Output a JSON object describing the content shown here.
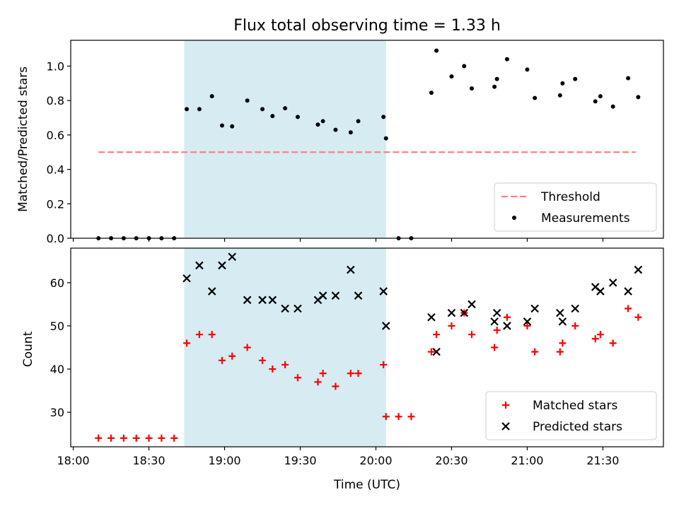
{
  "figure": {
    "title": "Flux total observing time = 1.33 h",
    "xlabel": "Time (UTC)",
    "shaded_interval": [
      "18:44",
      "20:04"
    ],
    "shade_color": "#add8e6"
  },
  "colors": {
    "threshold": "#ff8080",
    "measurement": "#000000",
    "matched": "#ff0000",
    "predicted": "#000000"
  },
  "chart_data": [
    {
      "type": "scatter",
      "ylabel": "Matched/Predicted stars",
      "xlim": [
        "17:59",
        "21:54"
      ],
      "ylim": [
        0,
        1.15
      ],
      "yticks": [
        0.0,
        0.2,
        0.4,
        0.6,
        0.8,
        1.0
      ],
      "ytick_labels": [
        "0.0",
        "0.2",
        "0.4",
        "0.6",
        "0.8",
        "1.0"
      ],
      "xticks": [
        "18:00",
        "18:30",
        "19:00",
        "19:30",
        "20:00",
        "20:30",
        "21:00",
        "21:30"
      ],
      "legend": {
        "placement": "lower right",
        "entries": [
          "Threshold",
          "Measurements"
        ]
      },
      "series": [
        {
          "name": "Threshold",
          "kind": "line",
          "style": "dashed",
          "x": [
            "18:10",
            "21:43"
          ],
          "y": [
            0.5,
            0.5
          ]
        },
        {
          "name": "Measurements",
          "kind": "points",
          "x": [
            "18:10",
            "18:15",
            "18:20",
            "18:25",
            "18:30",
            "18:35",
            "18:40",
            "18:45",
            "18:50",
            "18:55",
            "18:59",
            "19:03",
            "19:09",
            "19:15",
            "19:19",
            "19:24",
            "19:29",
            "19:37",
            "19:39",
            "19:44",
            "19:50",
            "19:53",
            "20:03",
            "20:04",
            "20:09",
            "20:14",
            "20:22",
            "20:24",
            "20:30",
            "20:35",
            "20:38",
            "20:47",
            "20:48",
            "20:52",
            "21:00",
            "21:03",
            "21:13",
            "21:14",
            "21:19",
            "21:27",
            "21:29",
            "21:34",
            "21:40",
            "21:44"
          ],
          "y": [
            0,
            0,
            0,
            0,
            0,
            0,
            0,
            0.75,
            0.75,
            0.825,
            0.655,
            0.65,
            0.8,
            0.75,
            0.71,
            0.755,
            0.705,
            0.66,
            0.68,
            0.63,
            0.615,
            0.68,
            0.705,
            0.58,
            0,
            0,
            0.845,
            1.09,
            0.94,
            1.0,
            0.87,
            0.88,
            0.925,
            1.04,
            0.98,
            0.815,
            0.83,
            0.9,
            0.925,
            0.795,
            0.825,
            0.765,
            0.93,
            0.82
          ]
        }
      ]
    },
    {
      "type": "scatter",
      "ylabel": "Count",
      "xlim": [
        "17:59",
        "21:54"
      ],
      "ylim": [
        22,
        68
      ],
      "yticks": [
        30,
        40,
        50,
        60
      ],
      "ytick_labels": [
        "30",
        "40",
        "50",
        "60"
      ],
      "xticks": [
        "18:00",
        "18:30",
        "19:00",
        "19:30",
        "20:00",
        "20:30",
        "21:00",
        "21:30"
      ],
      "xtick_labels": [
        "18:00",
        "18:30",
        "19:00",
        "19:30",
        "20:00",
        "20:30",
        "21:00",
        "21:30"
      ],
      "legend": {
        "placement": "lower right",
        "entries": [
          "Matched stars",
          "Predicted stars"
        ]
      },
      "series": [
        {
          "name": "Matched stars",
          "marker": "plus",
          "x": [
            "18:10",
            "18:15",
            "18:20",
            "18:25",
            "18:30",
            "18:35",
            "18:40",
            "18:45",
            "18:50",
            "18:55",
            "18:59",
            "19:03",
            "19:09",
            "19:15",
            "19:19",
            "19:24",
            "19:29",
            "19:37",
            "19:39",
            "19:44",
            "19:50",
            "19:53",
            "20:03",
            "20:04",
            "20:09",
            "20:14",
            "20:22",
            "20:24",
            "20:30",
            "20:35",
            "20:38",
            "20:47",
            "20:48",
            "20:52",
            "21:00",
            "21:03",
            "21:13",
            "21:14",
            "21:19",
            "21:27",
            "21:29",
            "21:34",
            "21:40",
            "21:44"
          ],
          "y": [
            24,
            24,
            24,
            24,
            24,
            24,
            24,
            46,
            48,
            48,
            42,
            43,
            45,
            42,
            40,
            41,
            38,
            37,
            39,
            36,
            39,
            39,
            41,
            29,
            29,
            29,
            44,
            48,
            50,
            53,
            48,
            45,
            49,
            52,
            50,
            44,
            44,
            46,
            50,
            47,
            48,
            46,
            54,
            52
          ]
        },
        {
          "name": "Predicted stars",
          "marker": "x",
          "x": [
            "18:45",
            "18:50",
            "18:55",
            "18:59",
            "19:03",
            "19:09",
            "19:15",
            "19:19",
            "19:24",
            "19:29",
            "19:37",
            "19:39",
            "19:44",
            "19:50",
            "19:53",
            "20:03",
            "20:04",
            "20:22",
            "20:24",
            "20:30",
            "20:35",
            "20:38",
            "20:47",
            "20:48",
            "20:52",
            "21:00",
            "21:03",
            "21:13",
            "21:14",
            "21:19",
            "21:27",
            "21:29",
            "21:34",
            "21:40",
            "21:44"
          ],
          "y": [
            61,
            64,
            58,
            64,
            66,
            56,
            56,
            56,
            54,
            54,
            56,
            57,
            57,
            63,
            57,
            58,
            50,
            52,
            44,
            53,
            53,
            55,
            51,
            53,
            50,
            51,
            54,
            53,
            51,
            54,
            59,
            58,
            60,
            58,
            63
          ]
        }
      ]
    }
  ]
}
